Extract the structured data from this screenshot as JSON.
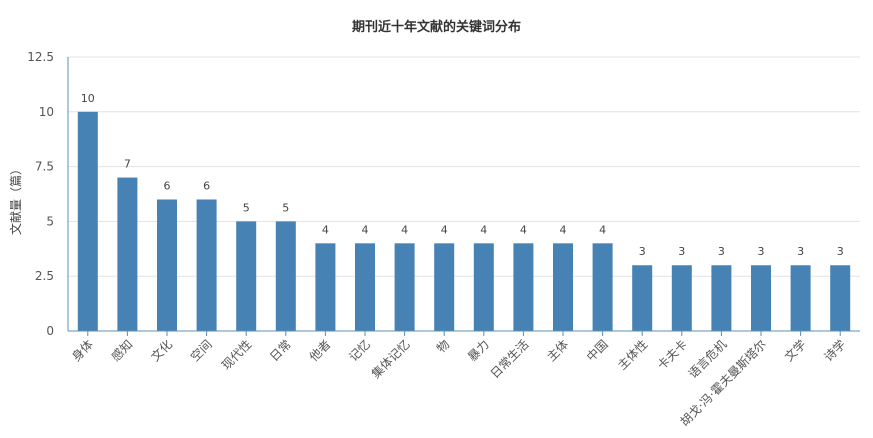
{
  "chart_data": {
    "type": "bar",
    "title": "期刊近十年文献的关键词分布",
    "xlabel": "",
    "ylabel": "文献量（篇）",
    "ylim": [
      0,
      12.5
    ],
    "yticks": [
      "0",
      "2.5",
      "5",
      "7.5",
      "10",
      "12.5"
    ],
    "ytick_values": [
      0,
      2.5,
      5,
      7.5,
      10,
      12.5
    ],
    "grid": true,
    "legend": "none",
    "bar_color": "#4682b4",
    "categories": [
      "身体",
      "感知",
      "文化",
      "空间",
      "现代性",
      "日常",
      "他者",
      "记忆",
      "集体记忆",
      "物",
      "暴力",
      "日常生活",
      "主体",
      "中国",
      "主体性",
      "卡夫卡",
      "语言危机",
      "胡戈·冯·霍夫曼斯塔尔",
      "文学",
      "诗学"
    ],
    "values": [
      10,
      7,
      6,
      6,
      5,
      5,
      4,
      4,
      4,
      4,
      4,
      4,
      4,
      4,
      3,
      3,
      3,
      3,
      3,
      3
    ]
  }
}
